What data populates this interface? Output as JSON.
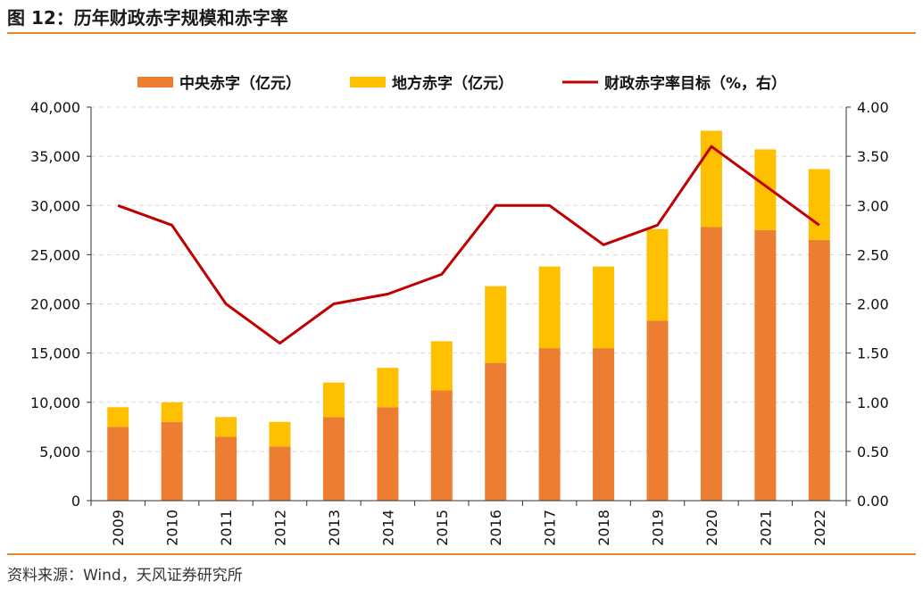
{
  "header": {
    "title": "图 12：历年财政赤字规模和赤字率"
  },
  "footer": {
    "source": "资料来源：Wind，天风证券研究所"
  },
  "colors": {
    "central": "#ed7d31",
    "local": "#ffc000",
    "rate": "#c00000",
    "accent": "#e8862a"
  },
  "chart_data": {
    "type": "bar",
    "stacked": true,
    "categories": [
      "2009",
      "2010",
      "2011",
      "2012",
      "2013",
      "2014",
      "2015",
      "2016",
      "2017",
      "2018",
      "2019",
      "2020",
      "2021",
      "2022"
    ],
    "series": [
      {
        "name": "中央赤字（亿元）",
        "kind": "bar",
        "axis": "left",
        "values": [
          7500,
          8000,
          6500,
          5500,
          8500,
          9500,
          11200,
          14000,
          15500,
          15500,
          18300,
          27800,
          27500,
          26500
        ]
      },
      {
        "name": "地方赤字（亿元）",
        "kind": "bar",
        "axis": "left",
        "values": [
          2000,
          2000,
          2000,
          2500,
          3500,
          4000,
          5000,
          7800,
          8300,
          8300,
          9300,
          9800,
          8200,
          7200
        ]
      },
      {
        "name": "财政赤字率目标（%，右）",
        "kind": "line",
        "axis": "right",
        "values": [
          3.0,
          2.8,
          2.0,
          1.6,
          2.0,
          2.1,
          2.3,
          3.0,
          3.0,
          2.6,
          2.8,
          3.6,
          3.2,
          2.8
        ]
      }
    ],
    "left_axis": {
      "ylim": [
        0,
        40000
      ],
      "ticks": [
        "0",
        "5,000",
        "10,000",
        "15,000",
        "20,000",
        "25,000",
        "30,000",
        "35,000",
        "40,000"
      ]
    },
    "right_axis": {
      "ylim": [
        0,
        4
      ],
      "ticks": [
        "0.00",
        "0.50",
        "1.00",
        "1.50",
        "2.00",
        "2.50",
        "3.00",
        "3.50",
        "4.00"
      ]
    },
    "grid": true,
    "legend_position": "top"
  }
}
